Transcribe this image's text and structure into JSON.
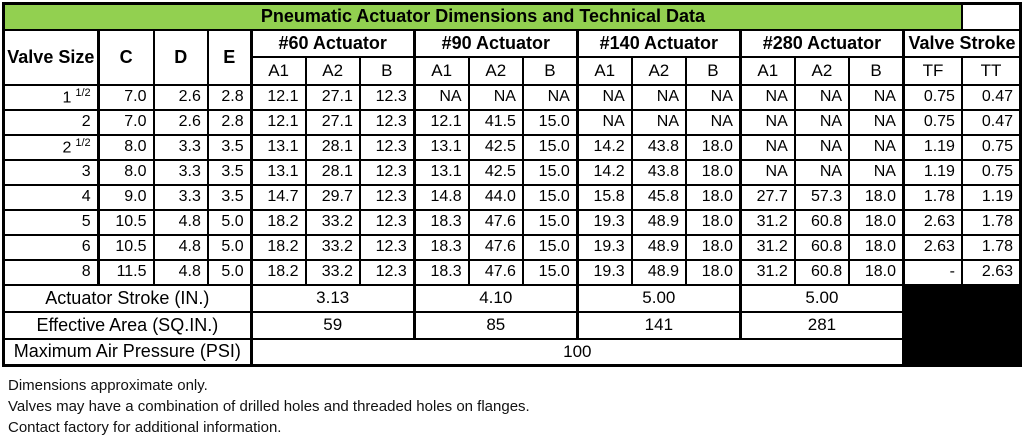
{
  "title": "Pneumatic Actuator Dimensions and Technical Data",
  "colors": {
    "title_bg": "#92d050",
    "border": "#000000",
    "blocked_area": "#000000"
  },
  "header": {
    "valve_size": "Valve Size",
    "c": "C",
    "d": "D",
    "e": "E",
    "groups": [
      {
        "label": "#60 Actuator",
        "cols": [
          "A1",
          "A2",
          "B"
        ]
      },
      {
        "label": "#90 Actuator",
        "cols": [
          "A1",
          "A2",
          "B"
        ]
      },
      {
        "label": "#140 Actuator",
        "cols": [
          "A1",
          "A2",
          "B"
        ]
      },
      {
        "label": "#280 Actuator",
        "cols": [
          "A1",
          "A2",
          "B"
        ]
      }
    ],
    "valve_stroke": {
      "label": "Valve Stroke",
      "cols": [
        "TF",
        "TT"
      ]
    }
  },
  "rows": [
    {
      "size": "1 1/2",
      "c": "7.0",
      "d": "2.6",
      "e": "2.8",
      "a60": [
        "12.1",
        "27.1",
        "12.3"
      ],
      "a90": [
        "NA",
        "NA",
        "NA"
      ],
      "a140": [
        "NA",
        "NA",
        "NA"
      ],
      "a280": [
        "NA",
        "NA",
        "NA"
      ],
      "tf": "0.75",
      "tt": "0.47"
    },
    {
      "size": "2",
      "c": "7.0",
      "d": "2.6",
      "e": "2.8",
      "a60": [
        "12.1",
        "27.1",
        "12.3"
      ],
      "a90": [
        "12.1",
        "41.5",
        "15.0"
      ],
      "a140": [
        "NA",
        "NA",
        "NA"
      ],
      "a280": [
        "NA",
        "NA",
        "NA"
      ],
      "tf": "0.75",
      "tt": "0.47"
    },
    {
      "size": "2 1/2",
      "c": "8.0",
      "d": "3.3",
      "e": "3.5",
      "a60": [
        "13.1",
        "28.1",
        "12.3"
      ],
      "a90": [
        "13.1",
        "42.5",
        "15.0"
      ],
      "a140": [
        "14.2",
        "43.8",
        "18.0"
      ],
      "a280": [
        "NA",
        "NA",
        "NA"
      ],
      "tf": "1.19",
      "tt": "0.75"
    },
    {
      "size": "3",
      "c": "8.0",
      "d": "3.3",
      "e": "3.5",
      "a60": [
        "13.1",
        "28.1",
        "12.3"
      ],
      "a90": [
        "13.1",
        "42.5",
        "15.0"
      ],
      "a140": [
        "14.2",
        "43.8",
        "18.0"
      ],
      "a280": [
        "NA",
        "NA",
        "NA"
      ],
      "tf": "1.19",
      "tt": "0.75"
    },
    {
      "size": "4",
      "c": "9.0",
      "d": "3.3",
      "e": "3.5",
      "a60": [
        "14.7",
        "29.7",
        "12.3"
      ],
      "a90": [
        "14.8",
        "44.0",
        "15.0"
      ],
      "a140": [
        "15.8",
        "45.8",
        "18.0"
      ],
      "a280": [
        "27.7",
        "57.3",
        "18.0"
      ],
      "tf": "1.78",
      "tt": "1.19"
    },
    {
      "size": "5",
      "c": "10.5",
      "d": "4.8",
      "e": "5.0",
      "a60": [
        "18.2",
        "33.2",
        "12.3"
      ],
      "a90": [
        "18.3",
        "47.6",
        "15.0"
      ],
      "a140": [
        "19.3",
        "48.9",
        "18.0"
      ],
      "a280": [
        "31.2",
        "60.8",
        "18.0"
      ],
      "tf": "2.63",
      "tt": "1.78"
    },
    {
      "size": "6",
      "c": "10.5",
      "d": "4.8",
      "e": "5.0",
      "a60": [
        "18.2",
        "33.2",
        "12.3"
      ],
      "a90": [
        "18.3",
        "47.6",
        "15.0"
      ],
      "a140": [
        "19.3",
        "48.9",
        "18.0"
      ],
      "a280": [
        "31.2",
        "60.8",
        "18.0"
      ],
      "tf": "2.63",
      "tt": "1.78"
    },
    {
      "size": "8",
      "c": "11.5",
      "d": "4.8",
      "e": "5.0",
      "a60": [
        "18.2",
        "33.2",
        "12.3"
      ],
      "a90": [
        "18.3",
        "47.6",
        "15.0"
      ],
      "a140": [
        "19.3",
        "48.9",
        "18.0"
      ],
      "a280": [
        "31.2",
        "60.8",
        "18.0"
      ],
      "tf": "-",
      "tt": "2.63"
    }
  ],
  "footer_rows": [
    {
      "label": "Actuator Stroke (IN.)",
      "values": [
        "3.13",
        "4.10",
        "5.00",
        "5.00"
      ]
    },
    {
      "label": "Effective Area (SQ.IN.)",
      "values": [
        "59",
        "85",
        "141",
        "281"
      ]
    },
    {
      "label": "Maximum Air Pressure (PSI)",
      "values": [
        "100"
      ]
    }
  ],
  "notes": [
    "Dimensions approximate only.",
    "Valves may have a combination of drilled holes and threaded holes on flanges.",
    "Contact factory for additional information."
  ]
}
